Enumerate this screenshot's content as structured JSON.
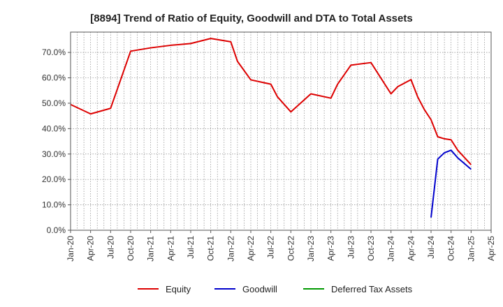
{
  "chart_data": {
    "type": "line",
    "title": "[8894]  Trend of Ratio of Equity, Goodwill and DTA to Total Assets",
    "xlabel": "",
    "ylabel": "",
    "x_ticks": [
      "Jan-20",
      "Apr-20",
      "Jul-20",
      "Oct-20",
      "Jan-21",
      "Apr-21",
      "Jul-21",
      "Oct-21",
      "Jan-22",
      "Apr-22",
      "Jul-22",
      "Oct-22",
      "Jan-23",
      "Apr-23",
      "Jul-23",
      "Oct-23",
      "Jan-24",
      "Apr-24",
      "Jul-24",
      "Oct-24",
      "Jan-25",
      "Apr-25"
    ],
    "y_ticks": [
      "0.0%",
      "10.0%",
      "20.0%",
      "30.0%",
      "40.0%",
      "50.0%",
      "60.0%",
      "70.0%"
    ],
    "ylim": [
      0,
      78
    ],
    "grid": true,
    "legend_position": "bottom",
    "series": [
      {
        "name": "Equity",
        "color": "#dd0000",
        "points": [
          [
            "Jan-20",
            49.5
          ],
          [
            "Apr-20",
            45.8
          ],
          [
            "Jul-20",
            48.0
          ],
          [
            "Oct-20",
            70.5
          ],
          [
            "Jan-21",
            71.8
          ],
          [
            "Apr-21",
            72.8
          ],
          [
            "Jul-21",
            73.5
          ],
          [
            "Oct-21",
            75.5
          ],
          [
            "Jan-22",
            74.2
          ],
          [
            "Feb-22",
            66.5
          ],
          [
            "Apr-22",
            59.2
          ],
          [
            "Jul-22",
            57.5
          ],
          [
            "Aug-22",
            52.5
          ],
          [
            "Oct-22",
            46.6
          ],
          [
            "Jan-23",
            53.7
          ],
          [
            "Apr-23",
            52.0
          ],
          [
            "May-23",
            57.5
          ],
          [
            "Jul-23",
            65.0
          ],
          [
            "Oct-23",
            66.0
          ],
          [
            "Jan-24",
            53.7
          ],
          [
            "Feb-24",
            56.5
          ],
          [
            "Apr-24",
            59.3
          ],
          [
            "May-24",
            52.5
          ],
          [
            "Jun-24",
            47.5
          ],
          [
            "Jul-24",
            43.5
          ],
          [
            "Aug-24",
            36.8
          ],
          [
            "Sep-24",
            36.0
          ],
          [
            "Oct-24",
            35.6
          ],
          [
            "Nov-24",
            31.5
          ],
          [
            "Jan-25",
            25.8
          ]
        ]
      },
      {
        "name": "Goodwill",
        "color": "#0000cc",
        "points": [
          [
            "Jul-24",
            5.0
          ],
          [
            "Aug-24",
            28.0
          ],
          [
            "Sep-24",
            30.5
          ],
          [
            "Oct-24",
            31.5
          ],
          [
            "Nov-24",
            28.5
          ],
          [
            "Jan-25",
            24.0
          ]
        ]
      },
      {
        "name": "Deferred Tax Assets",
        "color": "#009900",
        "points": []
      }
    ]
  }
}
